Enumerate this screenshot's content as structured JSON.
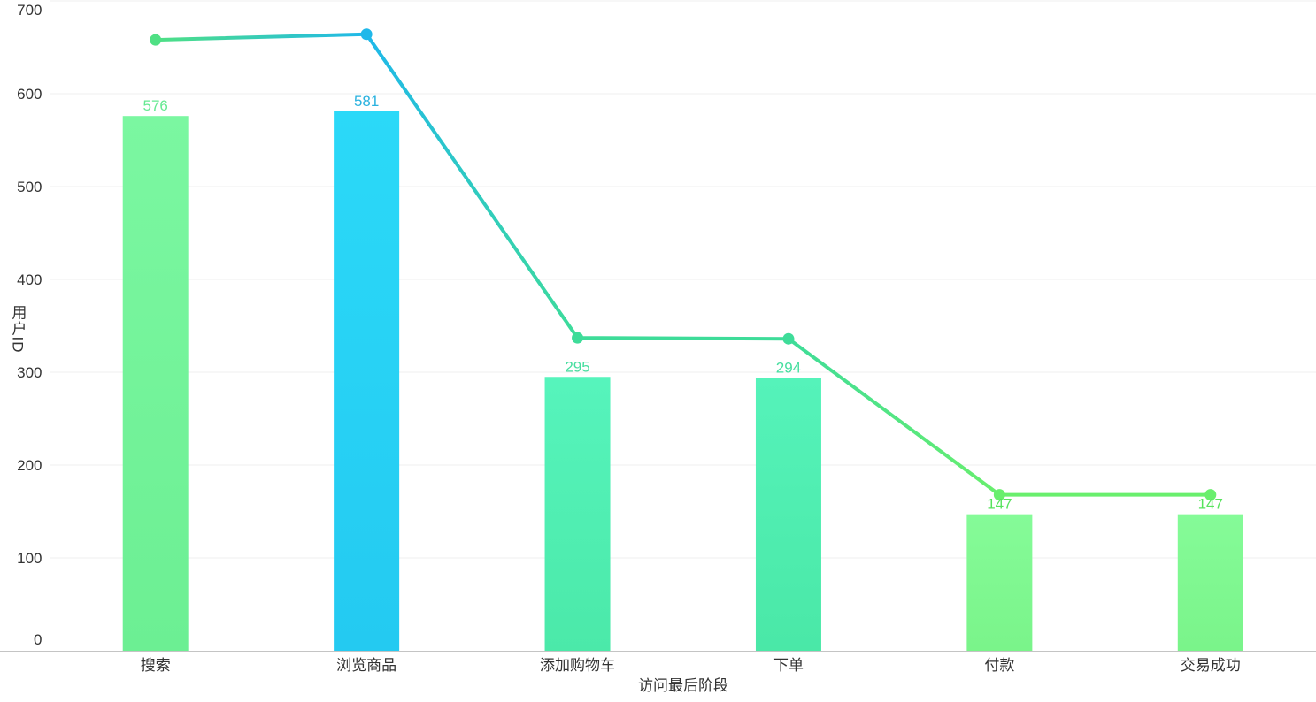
{
  "chart_data": {
    "type": "bar",
    "title": "",
    "categories": [
      "搜索",
      "浏览商品",
      "添加购物车",
      "下单",
      "付款",
      "交易成功"
    ],
    "series": [
      {
        "name": "bars",
        "type": "bar",
        "values": [
          576,
          581,
          295,
          294,
          147,
          147
        ]
      },
      {
        "name": "line",
        "type": "line",
        "values": [
          658,
          664,
          337,
          336,
          168,
          168
        ]
      }
    ],
    "bar_value_labels": [
      "576",
      "581",
      "295",
      "294",
      "147",
      "147"
    ],
    "xlabel": "访问最后阶段",
    "ylabel": "用户ID",
    "ylim": [
      0,
      700
    ],
    "ytick_step": 100,
    "yticks": [
      "0",
      "100",
      "200",
      "300",
      "400",
      "500",
      "600",
      "700"
    ],
    "grid": true,
    "legend": "none",
    "styles": {
      "background": "#FFFFFF",
      "text_color": "#333333",
      "grid_color": "#EFEFEF",
      "x_axis_line_color": "#C4C4C4",
      "y_axis_line_color": "#DDDDDD",
      "line_width": 4,
      "point_radius": 6.5,
      "categories_palette": [
        {
          "category": "搜索",
          "bar_top": "#7BF7A1",
          "bar_bottom": "#6CEF93",
          "point": "#4FE084",
          "value_label": "#66E992"
        },
        {
          "category": "浏览商品",
          "bar_top": "#2BD9F8",
          "bar_bottom": "#24CAF1",
          "point": "#1FB8EA",
          "value_label": "#2AB2DF"
        },
        {
          "category": "添加购物车",
          "bar_top": "#56F4BC",
          "bar_bottom": "#4BE9A9",
          "point": "#3EDC99",
          "value_label": "#46DE9F"
        },
        {
          "category": "下单",
          "bar_top": "#55F3BA",
          "bar_bottom": "#4AE8A7",
          "point": "#3EDC99",
          "value_label": "#46DE9F"
        },
        {
          "category": "付款",
          "bar_top": "#85FB98",
          "bar_bottom": "#7AF48A",
          "point": "#69EF6D",
          "value_label": "#57E35D"
        },
        {
          "category": "交易成功",
          "bar_top": "#85FB98",
          "bar_bottom": "#7AF48A",
          "point": "#69EF6D",
          "value_label": "#57E35D"
        }
      ]
    }
  }
}
